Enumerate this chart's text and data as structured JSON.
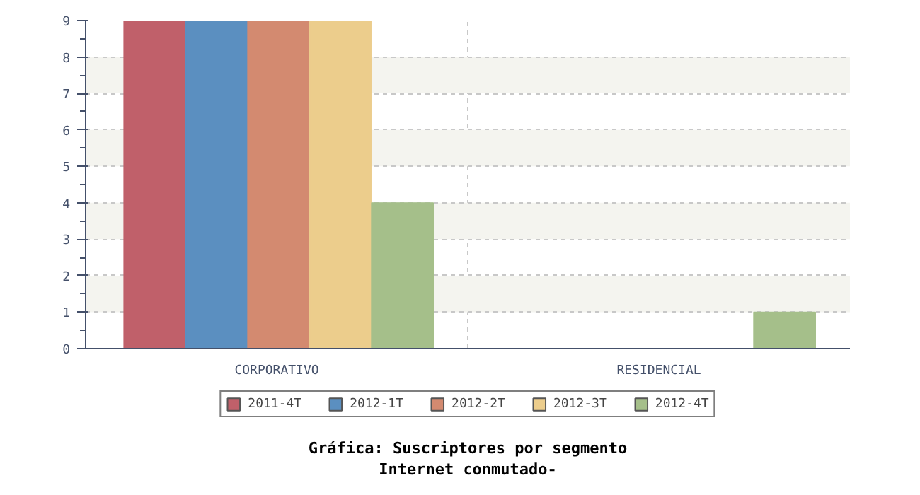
{
  "chart_data": {
    "type": "bar",
    "title": "Gráfica: Suscriptores por segmento",
    "subtitle": "Internet conmutado-",
    "categories": [
      "CORPORATIVO",
      "RESIDENCIAL"
    ],
    "series": [
      {
        "name": "2011-4T",
        "color": "#c0606a",
        "values": [
          9,
          0
        ]
      },
      {
        "name": "2012-1T",
        "color": "#5b8fc0",
        "values": [
          9,
          0
        ]
      },
      {
        "name": "2012-2T",
        "color": "#d38a70",
        "values": [
          9,
          0
        ]
      },
      {
        "name": "2012-3T",
        "color": "#eccd8c",
        "values": [
          9,
          0
        ]
      },
      {
        "name": "2012-4T",
        "color": "#a5bf8a",
        "values": [
          4,
          1
        ]
      }
    ],
    "ylim": [
      0,
      9
    ],
    "yticks": [
      0,
      1,
      2,
      3,
      4,
      5,
      6,
      7,
      8,
      9
    ],
    "grid": true,
    "legend": "bottom"
  }
}
